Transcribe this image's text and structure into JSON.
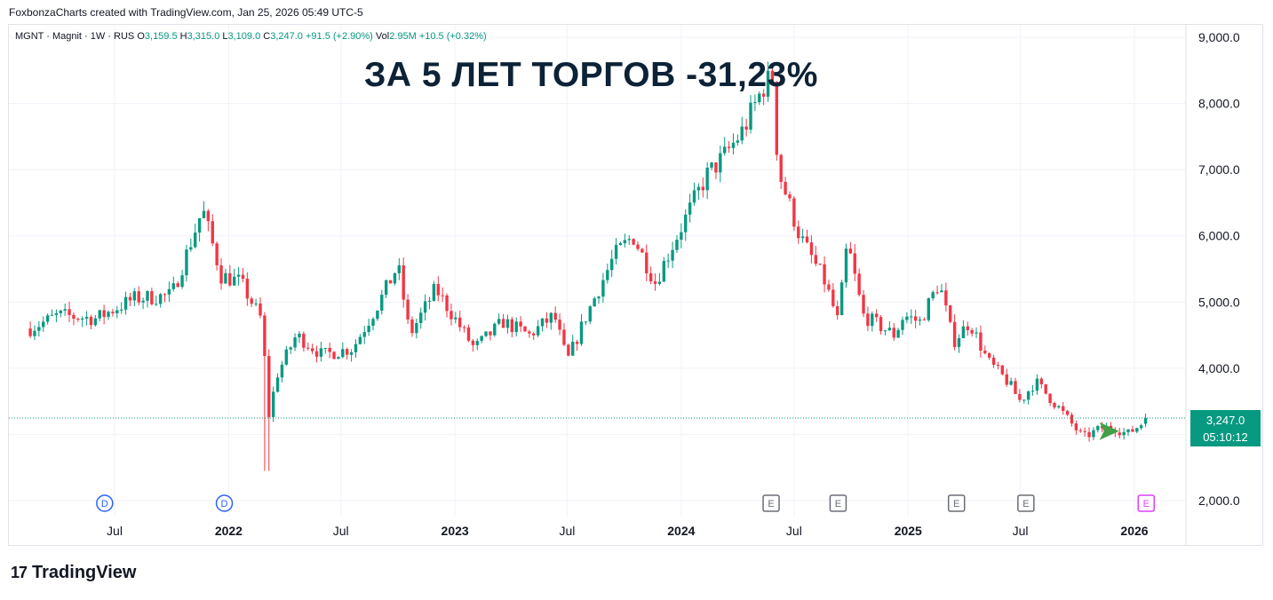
{
  "credit": "FoxbonzaCharts created with TradingView.com, Jan 25, 2026 05:49 UTC-5",
  "legend": {
    "symbol": "MGNT · Magnit · 1W · RUS",
    "o_label": "O",
    "o": "3,159.5",
    "h_label": "H",
    "h": "3,315.0",
    "l_label": "L",
    "l": "3,109.0",
    "c_label": "C",
    "c": "3,247.0",
    "change": "+91.5 (+2.90%)",
    "vol_label": "Vol",
    "vol": "2.95M",
    "vol_change": "+10.5 (+0.32%)"
  },
  "headline": "ЗА 5 ЛЕТ ТОРГОВ -31,23%",
  "price_tag": {
    "price": "3,247.0",
    "countdown": "05:10:12"
  },
  "brand": {
    "logo": "17",
    "name": "TradingView"
  },
  "colors": {
    "up": "#089981",
    "down": "#f23645",
    "grid": "#f0f3fa",
    "text": "#131722",
    "headline": "#0c2236",
    "dividend": "#2962ff",
    "earnings": "#6a6d78",
    "future_earnings": "#e040fb",
    "arrow": "#43a047"
  },
  "chart_data": {
    "type": "candlestick",
    "ylim": [
      1850,
      9150
    ],
    "yticks": [
      "9,000.0",
      "8,000.0",
      "7,000.0",
      "6,000.0",
      "5,000.0",
      "4,000.0",
      "2,000.0"
    ],
    "ytick_values": [
      9000,
      8000,
      7000,
      6000,
      5000,
      4000,
      2000
    ],
    "xticks": [
      "Jul",
      "2022",
      "Jul",
      "2023",
      "Jul",
      "2024",
      "Jul",
      "2025",
      "Jul",
      "2026"
    ],
    "xtick_dates": [
      "2021-07-01",
      "2022-01-01",
      "2022-07-01",
      "2023-01-01",
      "2023-07-01",
      "2024-01-01",
      "2024-07-01",
      "2025-01-01",
      "2025-07-01",
      "2026-01-01"
    ],
    "current_price": 3247,
    "keypoints": [
      [
        "2021-02-15",
        4600
      ],
      [
        "2021-04-01",
        4800
      ],
      [
        "2021-06-01",
        4750
      ],
      [
        "2021-08-01",
        5050
      ],
      [
        "2021-10-01",
        5100
      ],
      [
        "2021-11-20",
        6400
      ],
      [
        "2021-12-20",
        5400
      ],
      [
        "2022-01-20",
        5300
      ],
      [
        "2022-02-25",
        4700
      ],
      [
        "2022-03-05",
        3200
      ],
      [
        "2022-03-20",
        3900
      ],
      [
        "2022-04-20",
        4500
      ],
      [
        "2022-06-01",
        4200
      ],
      [
        "2022-07-20",
        4300
      ],
      [
        "2022-09-01",
        5000
      ],
      [
        "2022-10-01",
        5550
      ],
      [
        "2022-10-20",
        4500
      ],
      [
        "2022-12-01",
        5200
      ],
      [
        "2022-12-25",
        4850
      ],
      [
        "2023-02-01",
        4300
      ],
      [
        "2023-03-20",
        4700
      ],
      [
        "2023-05-01",
        4500
      ],
      [
        "2023-06-10",
        4800
      ],
      [
        "2023-07-01",
        4100
      ],
      [
        "2023-08-01",
        4800
      ],
      [
        "2023-09-15",
        5700
      ],
      [
        "2023-10-15",
        6000
      ],
      [
        "2023-11-20",
        5300
      ],
      [
        "2023-12-20",
        5900
      ],
      [
        "2024-02-10",
        6900
      ],
      [
        "2024-03-10",
        7200
      ],
      [
        "2024-04-10",
        7600
      ],
      [
        "2024-05-15",
        8300
      ],
      [
        "2024-05-28",
        8400
      ],
      [
        "2024-06-05",
        7000
      ],
      [
        "2024-07-10",
        6000
      ],
      [
        "2024-08-20",
        5300
      ],
      [
        "2024-09-10",
        4700
      ],
      [
        "2024-09-25",
        5900
      ],
      [
        "2024-10-20",
        4800
      ],
      [
        "2024-12-10",
        4500
      ],
      [
        "2024-12-25",
        4800
      ],
      [
        "2025-01-20",
        4700
      ],
      [
        "2025-02-20",
        5300
      ],
      [
        "2025-03-15",
        4400
      ],
      [
        "2025-04-10",
        4700
      ],
      [
        "2025-05-10",
        4100
      ],
      [
        "2025-06-10",
        3800
      ],
      [
        "2025-07-01",
        3500
      ],
      [
        "2025-07-25",
        3800
      ],
      [
        "2025-09-01",
        3400
      ],
      [
        "2025-10-10",
        2950
      ],
      [
        "2025-11-10",
        3100
      ],
      [
        "2025-12-01",
        3100
      ],
      [
        "2025-12-20",
        3000
      ],
      [
        "2026-01-25",
        3247
      ]
    ],
    "events": [
      {
        "label": "D",
        "date": "2021-06-15",
        "kind": "dividend"
      },
      {
        "label": "D",
        "date": "2021-12-25",
        "kind": "dividend"
      },
      {
        "label": "E",
        "date": "2024-05-25",
        "kind": "earnings"
      },
      {
        "label": "E",
        "date": "2024-09-10",
        "kind": "earnings"
      },
      {
        "label": "E",
        "date": "2025-03-20",
        "kind": "earnings"
      },
      {
        "label": "E",
        "date": "2025-07-10",
        "kind": "earnings"
      },
      {
        "label": "E",
        "date": "2026-01-20",
        "kind": "future_earnings"
      }
    ]
  }
}
